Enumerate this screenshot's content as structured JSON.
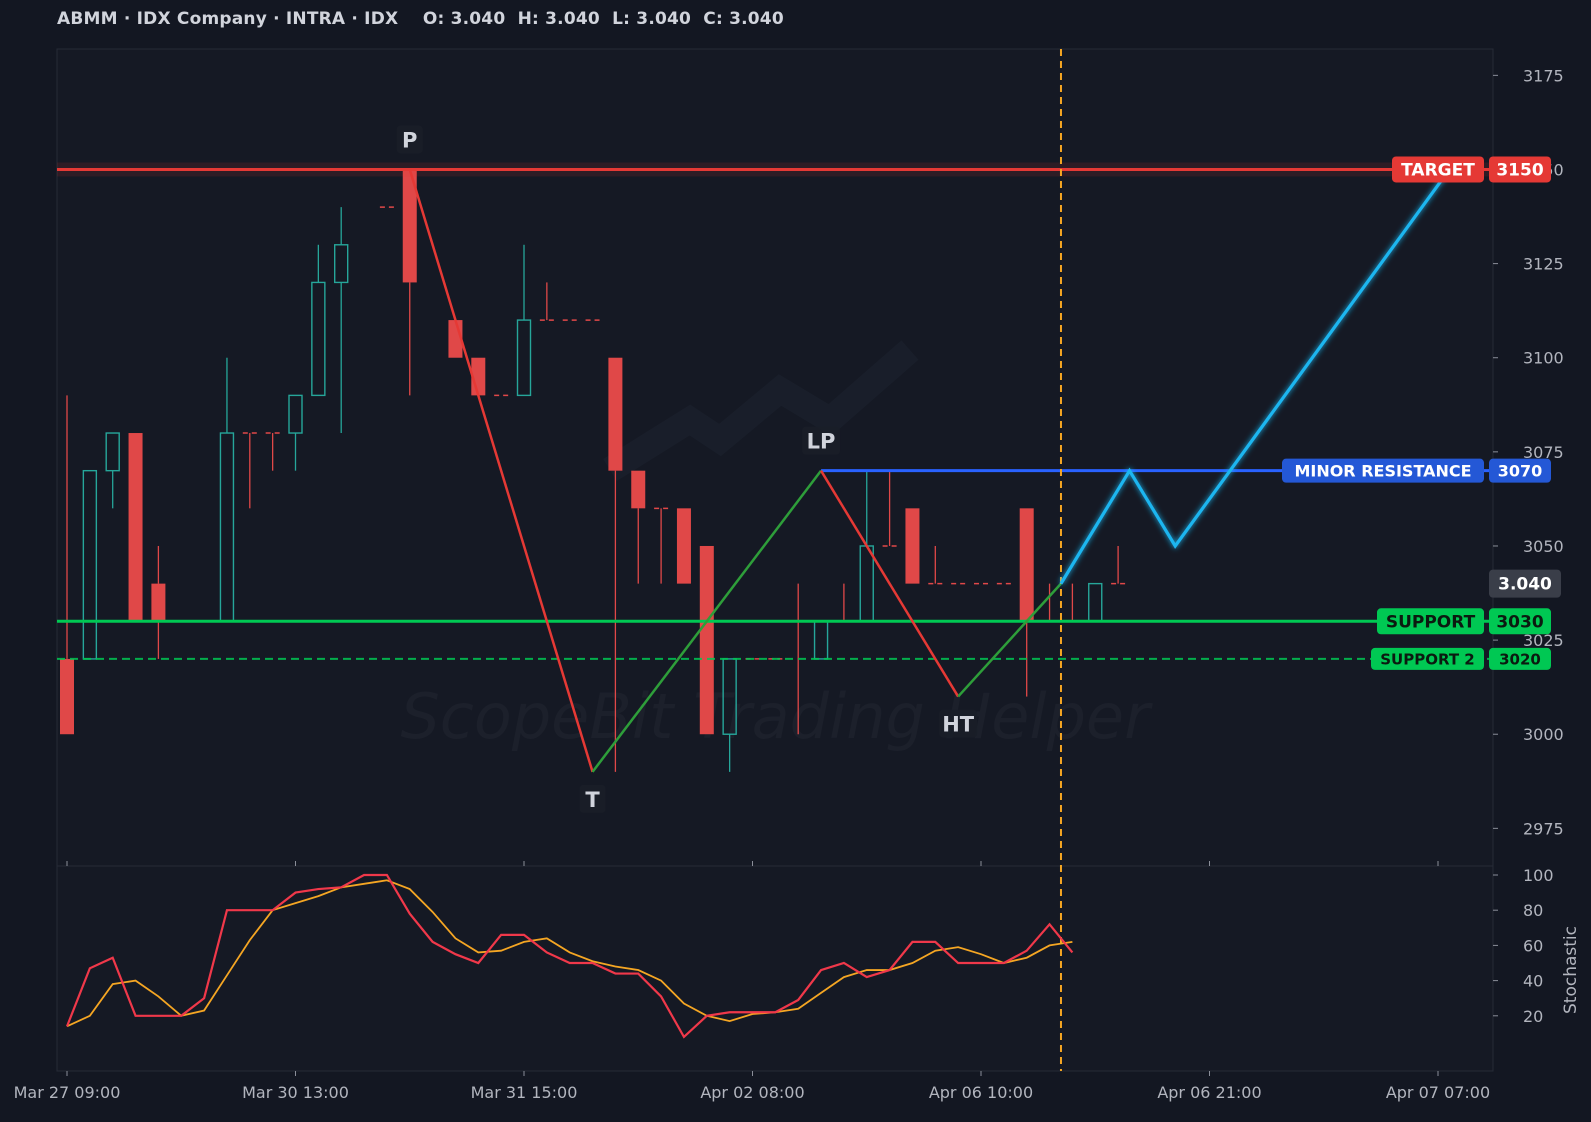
{
  "header": {
    "title": "ABMM · IDX Company · INTRA · IDX",
    "ohlc": "O: 3.040  H: 3.040  L: 3.040  C: 3.040"
  },
  "watermark": "ScopeBit Trading Helper",
  "colors": {
    "background": "#131722",
    "panel": "#151924",
    "grid": "#1f2430",
    "axis_text": "#b2b5be",
    "bull": "#26a69a",
    "bear": "#e04848",
    "target": "#e53935",
    "resistance": "#2962ff",
    "support": "#00c853",
    "projection": "#1fb6f0",
    "stoch_k": "#f0384a",
    "stoch_d": "#f5a623",
    "now_line": "#f5a623",
    "zigzag_down": "#e53935",
    "zigzag_up": "#2e9e3a"
  },
  "chart_data": {
    "type": "candlestick",
    "price_axis": {
      "ticks": [
        2975,
        3000,
        3025,
        3050,
        3075,
        3100,
        3125,
        3150,
        3175
      ],
      "range": [
        2965,
        3182
      ]
    },
    "time_axis": {
      "ticks": [
        {
          "i": 0,
          "label": "Mar 27 09:00"
        },
        {
          "i": 10,
          "label": "Mar 30 13:00"
        },
        {
          "i": 20,
          "label": "Mar 31 15:00"
        },
        {
          "i": 30,
          "label": "Apr 02 08:00"
        },
        {
          "i": 40,
          "label": "Apr 06 10:00"
        },
        {
          "i": 50,
          "label": "Apr 06 21:00"
        },
        {
          "i": 60,
          "label": "Apr 07 07:00"
        }
      ]
    },
    "candles": [
      {
        "o": 3020,
        "h": 3090,
        "l": 3000,
        "c": 3000
      },
      {
        "o": 3020,
        "h": 3070,
        "l": 3020,
        "c": 3070
      },
      {
        "o": 3070,
        "h": 3080,
        "l": 3060,
        "c": 3080
      },
      {
        "o": 3080,
        "h": 3080,
        "l": 3030,
        "c": 3030
      },
      {
        "o": 3040,
        "h": 3050,
        "l": 3020,
        "c": 3030
      },
      null,
      null,
      {
        "o": 3030,
        "h": 3100,
        "l": 3030,
        "c": 3080
      },
      {
        "o": 3080,
        "h": 3080,
        "l": 3060,
        "c": 3080
      },
      {
        "o": 3080,
        "h": 3080,
        "l": 3070,
        "c": 3080
      },
      {
        "o": 3080,
        "h": 3090,
        "l": 3070,
        "c": 3090
      },
      {
        "o": 3090,
        "h": 3130,
        "l": 3090,
        "c": 3120
      },
      {
        "o": 3120,
        "h": 3140,
        "l": 3080,
        "c": 3130
      },
      null,
      {
        "o": 3140,
        "h": 3140,
        "l": 3140,
        "c": 3140
      },
      {
        "o": 3150,
        "h": 3150,
        "l": 3090,
        "c": 3120
      },
      null,
      {
        "o": 3110,
        "h": 3110,
        "l": 3100,
        "c": 3100
      },
      {
        "o": 3100,
        "h": 3100,
        "l": 3090,
        "c": 3090
      },
      {
        "o": 3090,
        "h": 3090,
        "l": 3090,
        "c": 3090
      },
      {
        "o": 3090,
        "h": 3130,
        "l": 3090,
        "c": 3110
      },
      {
        "o": 3110,
        "h": 3120,
        "l": 3110,
        "c": 3110
      },
      {
        "o": 3110,
        "h": 3110,
        "l": 3110,
        "c": 3110
      },
      {
        "o": 3110,
        "h": 3110,
        "l": 3110,
        "c": 3110
      },
      {
        "o": 3100,
        "h": 3100,
        "l": 2990,
        "c": 3070
      },
      {
        "o": 3070,
        "h": 3070,
        "l": 3040,
        "c": 3060
      },
      {
        "o": 3060,
        "h": 3060,
        "l": 3040,
        "c": 3060
      },
      {
        "o": 3060,
        "h": 3060,
        "l": 3040,
        "c": 3040
      },
      {
        "o": 3050,
        "h": 3050,
        "l": 3000,
        "c": 3000
      },
      {
        "o": 3000,
        "h": 3020,
        "l": 2990,
        "c": 3020
      },
      {
        "o": 3020,
        "h": 3020,
        "l": 3020,
        "c": 3020
      },
      {
        "o": 3020,
        "h": 3020,
        "l": 3020,
        "c": 3020
      },
      {
        "o": 3030,
        "h": 3040,
        "l": 3000,
        "c": 3030
      },
      {
        "o": 3020,
        "h": 3030,
        "l": 3020,
        "c": 3030
      },
      {
        "o": 3030,
        "h": 3040,
        "l": 3030,
        "c": 3030
      },
      {
        "o": 3030,
        "h": 3070,
        "l": 3030,
        "c": 3050
      },
      {
        "o": 3050,
        "h": 3070,
        "l": 3050,
        "c": 3050
      },
      {
        "o": 3060,
        "h": 3060,
        "l": 3040,
        "c": 3040
      },
      {
        "o": 3040,
        "h": 3050,
        "l": 3040,
        "c": 3040
      },
      {
        "o": 3040,
        "h": 3040,
        "l": 3040,
        "c": 3040
      },
      {
        "o": 3040,
        "h": 3040,
        "l": 3040,
        "c": 3040
      },
      {
        "o": 3040,
        "h": 3040,
        "l": 3040,
        "c": 3040
      },
      {
        "o": 3060,
        "h": 3060,
        "l": 3010,
        "c": 3030
      },
      {
        "o": 3030,
        "h": 3040,
        "l": 3030,
        "c": 3030
      },
      {
        "o": 3030,
        "h": 3040,
        "l": 3030,
        "c": 3030
      },
      {
        "o": 3030,
        "h": 3040,
        "l": 3030,
        "c": 3040
      },
      {
        "o": 3040,
        "h": 3050,
        "l": 3040,
        "c": 3040
      }
    ],
    "levels": [
      {
        "name": "TARGET",
        "value": 3150,
        "style": "solid"
      },
      {
        "name": "MINOR RESISTANCE",
        "value": 3070,
        "style": "solid"
      },
      {
        "name": "SUPPORT",
        "value": 3030,
        "style": "solid"
      },
      {
        "name": "SUPPORT 2",
        "value": 3020,
        "style": "dashed"
      }
    ],
    "last_price": {
      "value": 3040,
      "label": "3.040"
    },
    "pivots": [
      {
        "label": "P",
        "i": 15,
        "price": 3150
      },
      {
        "label": "T",
        "i": 23,
        "price": 2990
      },
      {
        "label": "LP",
        "i": 33,
        "price": 3070
      },
      {
        "label": "HT",
        "i": 39,
        "price": 3010
      }
    ],
    "zigzag": [
      {
        "i": 15,
        "price": 3150
      },
      {
        "i": 23,
        "price": 2990
      },
      {
        "i": 33,
        "price": 3070
      },
      {
        "i": 39,
        "price": 3010
      },
      {
        "i": 43.5,
        "price": 3040
      }
    ],
    "now_index": 43.5,
    "projection": [
      {
        "i": 43.5,
        "price": 3040
      },
      {
        "i": 46.5,
        "price": 3070
      },
      {
        "i": 48.5,
        "price": 3050
      },
      {
        "i": 60.5,
        "price": 3150
      }
    ],
    "stochastic": {
      "label": "Stochastic",
      "ticks": [
        20,
        40,
        60,
        80,
        100
      ],
      "range": [
        0,
        100
      ],
      "k": [
        14,
        47,
        53,
        20,
        20,
        20,
        30,
        80,
        80,
        80,
        90,
        92,
        93,
        100,
        100,
        78,
        62,
        55,
        50,
        66,
        66,
        56,
        50,
        50,
        44,
        44,
        31,
        8,
        20,
        22,
        22,
        22,
        29,
        46,
        50,
        42,
        46,
        62,
        62,
        50,
        50,
        50,
        57,
        72,
        56
      ],
      "d": [
        14,
        20,
        38,
        40,
        31,
        20,
        23,
        43,
        63,
        80,
        84,
        88,
        93,
        95,
        97,
        92,
        79,
        64,
        56,
        57,
        62,
        64,
        56,
        51,
        48,
        46,
        40,
        27,
        20,
        17,
        21,
        22,
        24,
        33,
        42,
        46,
        46,
        50,
        57,
        59,
        55,
        50,
        53,
        60,
        62
      ]
    }
  }
}
